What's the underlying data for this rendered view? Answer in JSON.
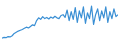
{
  "chart_data": {
    "type": "line",
    "color": "#3a8fd4",
    "tick_labels": false,
    "grid": false,
    "xlim": [
      0,
      57
    ],
    "ylim": [
      0,
      100
    ],
    "x": [
      0,
      1,
      2,
      3,
      4,
      5,
      6,
      7,
      8,
      9,
      10,
      11,
      12,
      13,
      14,
      15,
      16,
      17,
      18,
      19,
      20,
      21,
      22,
      23,
      24,
      25,
      26,
      27,
      28,
      29,
      30,
      31,
      32,
      33,
      34,
      35,
      36,
      37,
      38,
      39,
      40,
      41,
      42,
      43,
      44,
      45,
      46,
      47,
      48,
      49,
      50,
      51,
      52,
      53,
      54,
      55,
      56,
      57
    ],
    "values": [
      10,
      12,
      11,
      14,
      13,
      16,
      22,
      25,
      28,
      30,
      32,
      35,
      38,
      36,
      40,
      44,
      42,
      55,
      62,
      58,
      65,
      60,
      63,
      59,
      64,
      61,
      66,
      62,
      60,
      68,
      70,
      63,
      82,
      55,
      78,
      58,
      88,
      50,
      80,
      62,
      90,
      48,
      75,
      60,
      92,
      45,
      70,
      85,
      55,
      80,
      62,
      90,
      50,
      78,
      60,
      85,
      65,
      70
    ]
  }
}
